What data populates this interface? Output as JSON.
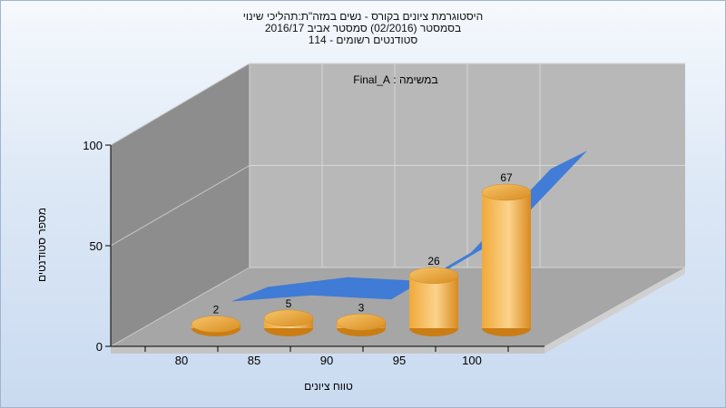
{
  "chart_data": {
    "type": "bar",
    "title_lines": [
      "היסטוגרמת ציונים בקורס - נשים במזה\"ת:תהליכי שינוי",
      "בסמסטר  (02/2016)  סמסטר אביב 2016/17",
      "סטודנטים רשומים - 114"
    ],
    "annotation": "במשימה : Final_A",
    "xlabel": "טווח ציונים",
    "ylabel": "מספר סטודנטים",
    "categories": [
      "80",
      "85",
      "90",
      "95",
      "100"
    ],
    "values": [
      2,
      5,
      3,
      26,
      67
    ],
    "y_ticks": [
      "0",
      "50",
      "100"
    ],
    "ylim": [
      0,
      100
    ],
    "grid": true,
    "bar_color": "#f0a93a",
    "bar_highlight": "#fbd38c",
    "trend_color": "#3a78d8",
    "wall_back_color": "#b8b8b8",
    "wall_side_color": "#8d8d8d",
    "floor_color": "#a6a6a6"
  }
}
